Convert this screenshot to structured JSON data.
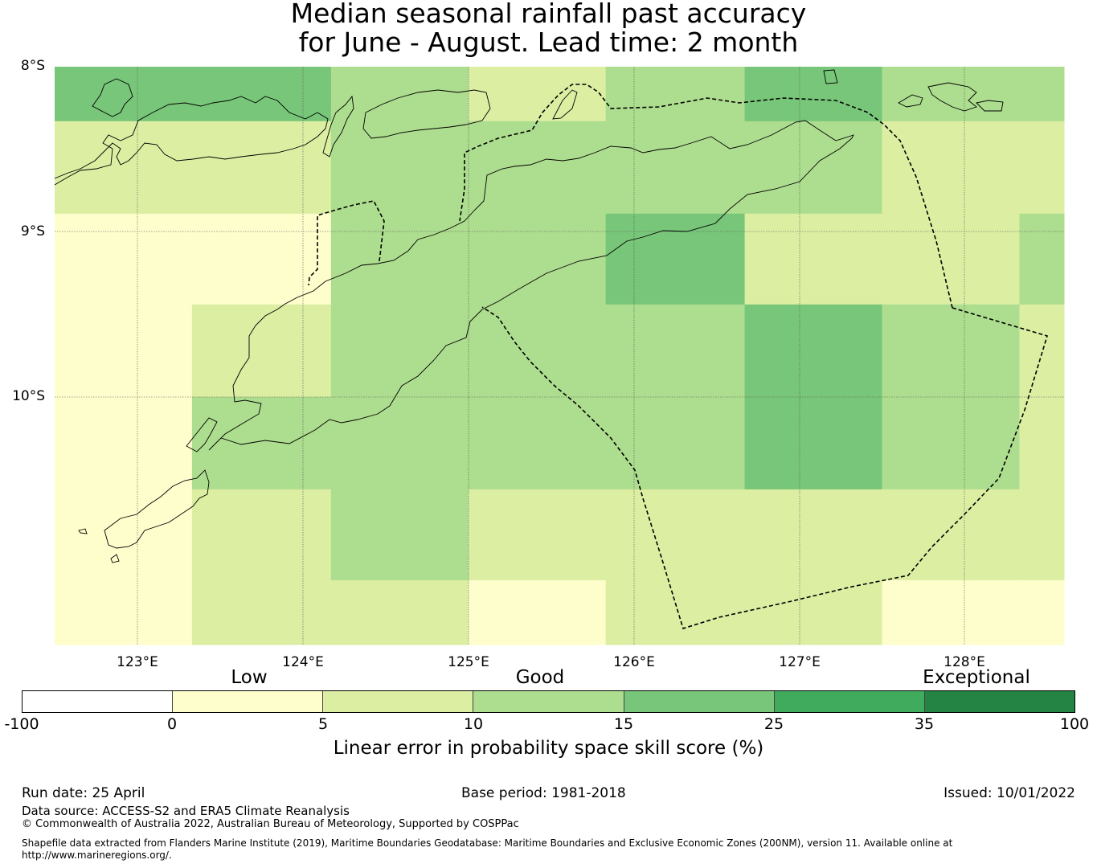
{
  "title": {
    "line1": "Median seasonal rainfall past accuracy",
    "line2": "for June - August. Lead time: 2 month"
  },
  "map": {
    "lat_labels": [
      "8°S",
      "9°S",
      "10°S"
    ],
    "lon_labels": [
      "123°E",
      "124°E",
      "125°E",
      "126°E",
      "127°E",
      "128°E"
    ],
    "lon_range": [
      122.5,
      128.6
    ],
    "lat_range": [
      -8.0,
      -11.5
    ],
    "grid_cells": {
      "columns_lon": [
        122.5,
        123.33,
        124.17,
        125.0,
        125.83,
        126.67,
        127.5,
        128.33,
        128.6
      ],
      "rows_lat": [
        -8.0,
        -8.33,
        -8.89,
        -9.44,
        -10.0,
        -10.56,
        -11.11,
        -11.5
      ],
      "skill_class": [
        [
          3,
          3,
          2,
          1,
          2,
          3,
          2,
          2
        ],
        [
          1,
          1,
          2,
          2,
          2,
          2,
          1,
          1
        ],
        [
          0,
          0,
          2,
          2,
          3,
          1,
          1,
          2
        ],
        [
          0,
          1,
          2,
          2,
          2,
          3,
          2,
          1
        ],
        [
          0,
          2,
          2,
          2,
          2,
          3,
          2,
          1
        ],
        [
          0,
          1,
          2,
          1,
          1,
          1,
          1,
          1
        ],
        [
          0,
          1,
          1,
          0,
          1,
          1,
          0,
          0
        ]
      ]
    },
    "boundary_type": "dashed EEZ boundary"
  },
  "legend": {
    "categories": [
      "Low",
      "Good",
      "Exceptional"
    ],
    "ticks": [
      "-100",
      "0",
      "5",
      "10",
      "15",
      "25",
      "35",
      "100"
    ],
    "colors": [
      "#ffffff",
      "#fefdcc",
      "#dbeea2",
      "#addd8e",
      "#78c679",
      "#41ab5d",
      "#238443"
    ],
    "title": "Linear error in probability space skill score (%)"
  },
  "footer": {
    "run_date": "Run date: 25 April",
    "base_period": "Base period: 1981-2018",
    "issued": "Issued: 10/01/2022",
    "data_source": "Data source: ACCESS-S2 and ERA5 Climate Reanalysis",
    "copyright": "© Commonwealth of Australia 2022, Australian Bureau of Meteorology, Supported by COSPPac",
    "shapefile_1": "Shapefile data extracted from Flanders Marine Institute (2019), Maritime Boundaries Geodatabase: Maritime Boundaries and Exclusive Economic Zones (200NM), version 11. Available online at",
    "shapefile_2": "http://www.marineregions.org/."
  }
}
